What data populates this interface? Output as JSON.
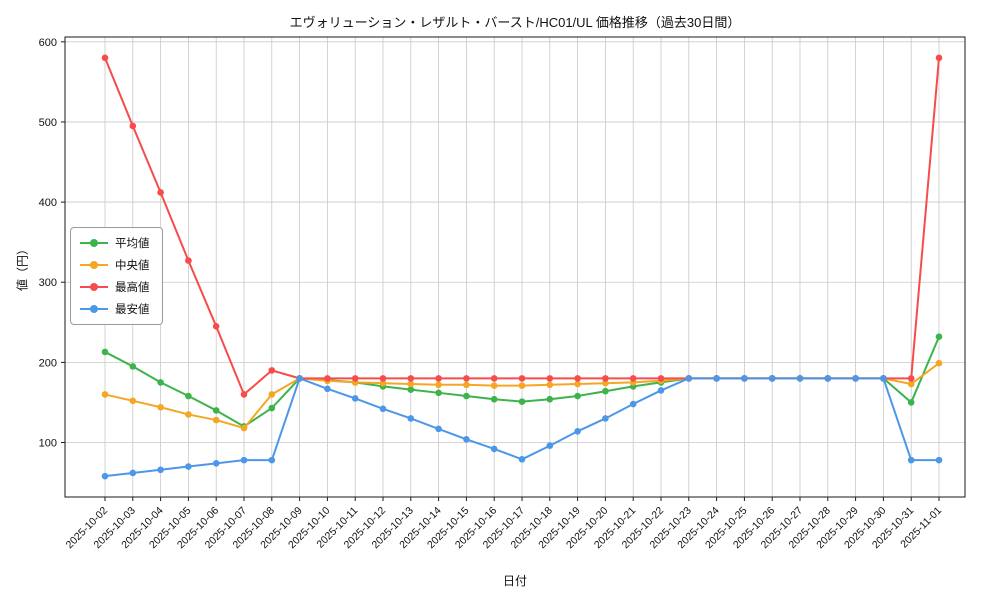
{
  "chart_data": {
    "type": "line",
    "title": "エヴォリューション・レザルト・バースト/HC01/UL 価格推移（過去30日間）",
    "xlabel": "日付",
    "ylabel": "値（円）",
    "ylim": [
      32,
      606
    ],
    "yticks": [
      100,
      200,
      300,
      400,
      500,
      600
    ],
    "grid": true,
    "legend_position": "left",
    "x": [
      "2025-10-02",
      "2025-10-03",
      "2025-10-04",
      "2025-10-05",
      "2025-10-06",
      "2025-10-07",
      "2025-10-08",
      "2025-10-09",
      "2025-10-10",
      "2025-10-11",
      "2025-10-12",
      "2025-10-13",
      "2025-10-14",
      "2025-10-15",
      "2025-10-16",
      "2025-10-17",
      "2025-10-18",
      "2025-10-19",
      "2025-10-20",
      "2025-10-21",
      "2025-10-22",
      "2025-10-23",
      "2025-10-24",
      "2025-10-25",
      "2025-10-26",
      "2025-10-27",
      "2025-10-28",
      "2025-10-29",
      "2025-10-30",
      "2025-10-31",
      "2025-11-01"
    ],
    "series": [
      {
        "name": "平均値",
        "key": "average",
        "color": "#3cb44b",
        "values": [
          213,
          195,
          175,
          158,
          140,
          120,
          143,
          180,
          178,
          175,
          170,
          166,
          162,
          158,
          154,
          151,
          154,
          158,
          164,
          170,
          175,
          180,
          180,
          180,
          180,
          180,
          180,
          180,
          180,
          150,
          232
        ]
      },
      {
        "name": "中央値",
        "key": "median",
        "color": "#f5a623",
        "values": [
          160,
          152,
          144,
          135,
          128,
          118,
          160,
          180,
          177,
          175,
          174,
          173,
          172,
          172,
          171,
          171,
          172,
          173,
          174,
          175,
          177,
          180,
          180,
          180,
          180,
          180,
          180,
          180,
          180,
          173,
          199
        ]
      },
      {
        "name": "最高値",
        "key": "max",
        "color": "#f74c4c",
        "values": [
          580,
          495,
          412,
          327,
          245,
          160,
          190,
          180,
          180,
          180,
          180,
          180,
          180,
          180,
          180,
          180,
          180,
          180,
          180,
          180,
          180,
          180,
          180,
          180,
          180,
          180,
          180,
          180,
          180,
          180,
          580
        ]
      },
      {
        "name": "最安値",
        "key": "min",
        "color": "#4d97e8",
        "values": [
          58,
          62,
          66,
          70,
          74,
          78,
          78,
          180,
          167,
          155,
          142,
          130,
          117,
          104,
          92,
          79,
          96,
          114,
          130,
          148,
          165,
          180,
          180,
          180,
          180,
          180,
          180,
          180,
          180,
          78,
          78
        ]
      }
    ]
  }
}
